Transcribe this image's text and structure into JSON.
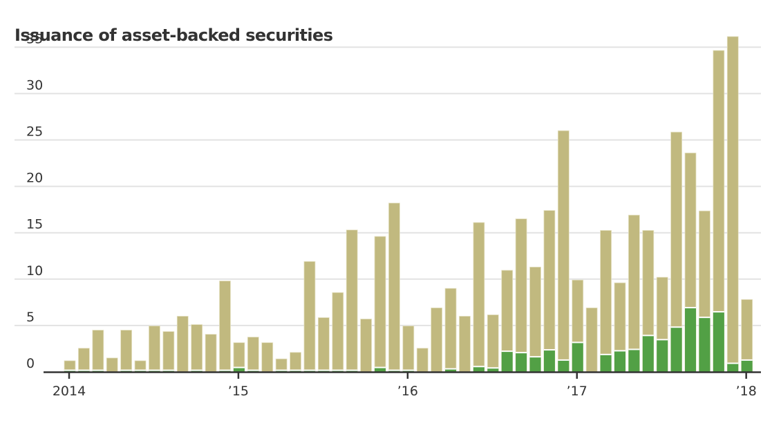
{
  "chart_data": {
    "type": "bar",
    "stacked": true,
    "title": "Issuance of asset-backed securities",
    "xlabel": "",
    "ylabel": "",
    "ylim": [
      0,
      35
    ],
    "yticks": [
      "0",
      "5",
      "10",
      "15",
      "20",
      "25",
      "30",
      "35"
    ],
    "ytick_values": [
      0,
      5,
      10,
      15,
      20,
      25,
      30,
      35
    ],
    "xticks": [
      {
        "label": "2014",
        "index": 0
      },
      {
        "label": "’15",
        "index": 12
      },
      {
        "label": "’16",
        "index": 24
      },
      {
        "label": "’17",
        "index": 36
      },
      {
        "label": "’18",
        "index": 48
      }
    ],
    "grid": true,
    "legend": "none",
    "categories": [
      "2014-01",
      "2014-02",
      "2014-03",
      "2014-04",
      "2014-05",
      "2014-06",
      "2014-07",
      "2014-08",
      "2014-09",
      "2014-10",
      "2014-11",
      "2014-12",
      "2015-01",
      "2015-02",
      "2015-03",
      "2015-04",
      "2015-05",
      "2015-06",
      "2015-07",
      "2015-08",
      "2015-09",
      "2015-10",
      "2015-11",
      "2015-12",
      "2016-01",
      "2016-02",
      "2016-03",
      "2016-04",
      "2016-05",
      "2016-06",
      "2016-07",
      "2016-08",
      "2016-09",
      "2016-10",
      "2016-11",
      "2016-12",
      "2017-01",
      "2017-02",
      "2017-03",
      "2017-04",
      "2017-05",
      "2017-06",
      "2017-07",
      "2017-08",
      "2017-09",
      "2017-10",
      "2017-11",
      "2017-12",
      "2018-01"
    ],
    "series": [
      {
        "name": "green segment",
        "color": "#52a045",
        "values": [
          0.1,
          0.1,
          0.1,
          0,
          0.1,
          0.1,
          0.1,
          0.1,
          0,
          0.1,
          0,
          0.1,
          0.4,
          0.1,
          0,
          0.1,
          0.1,
          0.1,
          0.1,
          0.1,
          0.1,
          0,
          0.4,
          0.1,
          0.1,
          0,
          0,
          0.25,
          0,
          0.5,
          0.35,
          2.15,
          2.0,
          1.55,
          2.3,
          1.2,
          3.1,
          0,
          1.8,
          2.2,
          2.35,
          3.85,
          3.4,
          4.75,
          6.85,
          5.8,
          6.4,
          0.85,
          1.2
        ]
      },
      {
        "name": "tan segment",
        "color": "#c1b97f",
        "values": [
          1.1,
          2.45,
          4.4,
          1.5,
          4.4,
          1.1,
          4.85,
          4.25,
          6.0,
          5.0,
          4.05,
          9.7,
          2.75,
          3.65,
          3.15,
          1.3,
          2.0,
          11.8,
          5.75,
          8.45,
          15.2,
          5.7,
          14.2,
          18.1,
          4.85,
          2.55,
          6.9,
          8.75,
          6.0,
          15.6,
          5.8,
          8.8,
          14.5,
          9.75,
          15.1,
          24.8,
          6.8,
          6.9,
          13.45,
          7.4,
          14.55,
          11.4,
          6.8,
          21.1,
          16.75,
          11.55,
          28.25,
          35.3,
          6.6
        ]
      }
    ],
    "totals": [
      1.2,
      2.55,
      4.5,
      1.5,
      4.5,
      1.2,
      4.95,
      4.35,
      6.0,
      5.1,
      4.05,
      9.8,
      3.15,
      3.75,
      3.15,
      1.4,
      2.1,
      11.9,
      5.85,
      8.55,
      15.3,
      5.7,
      14.6,
      18.2,
      4.95,
      2.55,
      6.9,
      9.0,
      6.0,
      16.1,
      6.15,
      10.95,
      16.5,
      11.3,
      17.4,
      26.0,
      9.9,
      6.9,
      15.25,
      9.6,
      16.9,
      15.25,
      10.2,
      25.85,
      23.6,
      17.35,
      34.65,
      36.15,
      7.8
    ]
  }
}
